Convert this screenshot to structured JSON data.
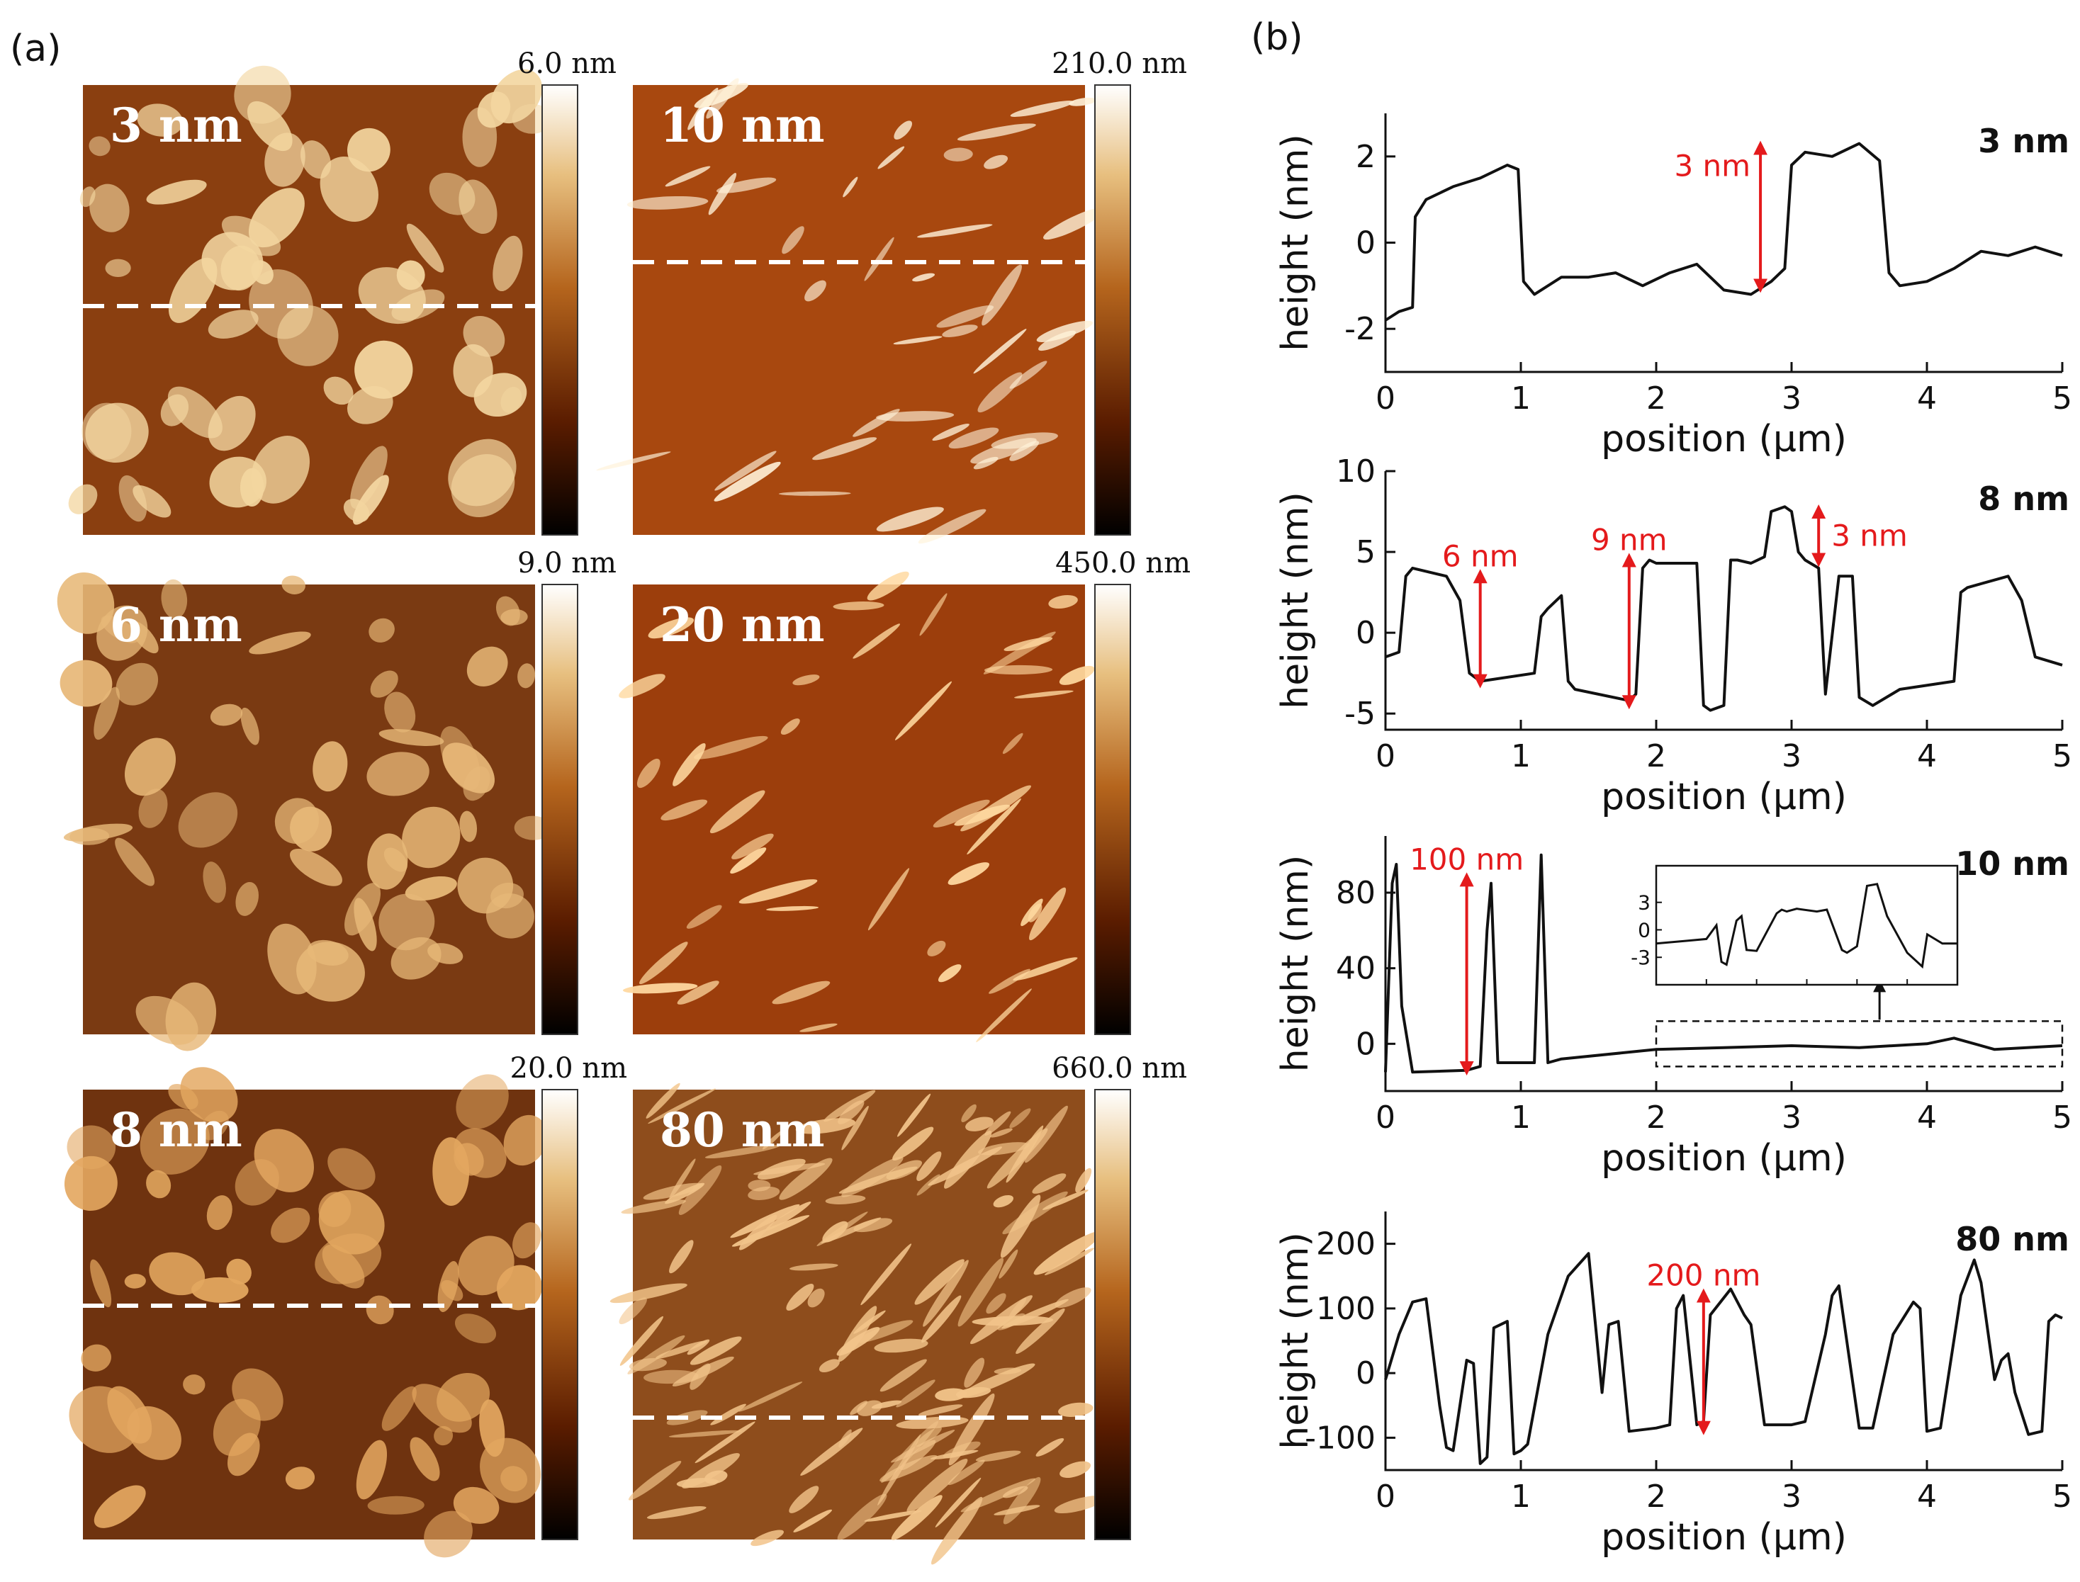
{
  "panel_a": {
    "label": "(a)",
    "images": [
      {
        "label": "3 nm",
        "colorbar_max": "6.0 nm",
        "base": "#8a3f10",
        "feature": "#f3d6a0"
      },
      {
        "label": "10 nm",
        "colorbar_max": "210.0 nm",
        "base": "#a8480f",
        "feature": "#fff2d8"
      },
      {
        "label": "6 nm",
        "colorbar_max": "9.0 nm",
        "base": "#7a3a12",
        "feature": "#e7b878"
      },
      {
        "label": "20 nm",
        "colorbar_max": "450.0 nm",
        "base": "#9c3e0c",
        "feature": "#ffd9a0"
      },
      {
        "label": "8 nm",
        "colorbar_max": "20.0 nm",
        "base": "#6f330f",
        "feature": "#e3a760"
      },
      {
        "label": "80 nm",
        "colorbar_max": "660.0 nm",
        "base": "#8e4d1c",
        "feature": "#f2c48a"
      }
    ]
  },
  "panel_b": {
    "label": "(b)"
  },
  "chart_data": [
    {
      "type": "line",
      "title": "3 nm",
      "xlabel": "position (μm)",
      "ylabel": "height (nm)",
      "xlim": [
        0,
        5
      ],
      "ylim": [
        -3,
        3
      ],
      "xticks": [
        0,
        1,
        2,
        3,
        4,
        5
      ],
      "yticks": [
        -2,
        0,
        2
      ],
      "x": [
        0,
        0.1,
        0.2,
        0.22,
        0.3,
        0.5,
        0.7,
        0.9,
        0.98,
        1.02,
        1.1,
        1.3,
        1.5,
        1.7,
        1.9,
        2.1,
        2.3,
        2.5,
        2.7,
        2.85,
        2.95,
        3.0,
        3.1,
        3.3,
        3.5,
        3.65,
        3.72,
        3.8,
        4.0,
        4.2,
        4.4,
        4.6,
        4.8,
        5.0
      ],
      "values": [
        -1.8,
        -1.6,
        -1.5,
        0.6,
        1.0,
        1.3,
        1.5,
        1.8,
        1.7,
        -0.9,
        -1.2,
        -0.8,
        -0.8,
        -0.7,
        -1.0,
        -0.7,
        -0.5,
        -1.1,
        -1.2,
        -0.9,
        -0.6,
        1.8,
        2.1,
        2.0,
        2.3,
        1.9,
        -0.7,
        -1.0,
        -0.9,
        -0.6,
        -0.2,
        -0.3,
        -0.1,
        -0.3
      ],
      "annotations": [
        {
          "text": "3 nm",
          "x": 2.77,
          "y1": 2.2,
          "y2": -1.0
        }
      ]
    },
    {
      "type": "line",
      "title": "8 nm",
      "xlabel": "position (μm)",
      "ylabel": "height (nm)",
      "xlim": [
        0,
        5
      ],
      "ylim": [
        -6,
        10
      ],
      "xticks": [
        0,
        1,
        2,
        3,
        4,
        5
      ],
      "yticks": [
        -5,
        0,
        5,
        10
      ],
      "x": [
        0,
        0.1,
        0.15,
        0.2,
        0.45,
        0.55,
        0.62,
        0.7,
        1.1,
        1.15,
        1.2,
        1.3,
        1.35,
        1.4,
        1.8,
        1.85,
        1.9,
        1.95,
        2.0,
        2.3,
        2.35,
        2.4,
        2.5,
        2.55,
        2.6,
        2.7,
        2.8,
        2.85,
        2.95,
        3.0,
        3.05,
        3.1,
        3.2,
        3.25,
        3.35,
        3.45,
        3.5,
        3.6,
        3.8,
        4.2,
        4.25,
        4.3,
        4.6,
        4.7,
        4.8,
        5.0
      ],
      "values": [
        -1.5,
        -1.2,
        3.5,
        4.0,
        3.5,
        2.0,
        -2.5,
        -3.0,
        -2.5,
        1.0,
        1.5,
        2.3,
        -3.0,
        -3.5,
        -4.2,
        -3.8,
        4.0,
        4.5,
        4.3,
        4.3,
        -4.5,
        -4.8,
        -4.5,
        4.5,
        4.5,
        4.3,
        4.7,
        7.5,
        7.8,
        7.5,
        5.0,
        4.5,
        4.0,
        -3.8,
        3.5,
        3.5,
        -4.0,
        -4.5,
        -3.5,
        -3.0,
        2.5,
        2.8,
        3.5,
        2.0,
        -1.5,
        -2.0
      ],
      "annotations": [
        {
          "text": "6 nm",
          "x": 0.7,
          "y1": 3.5,
          "y2": -3.0
        },
        {
          "text": "9 nm",
          "x": 1.8,
          "y1": 4.5,
          "y2": -4.3
        },
        {
          "text": "3 nm",
          "x": 3.2,
          "y1": 7.5,
          "y2": 4.5
        }
      ]
    },
    {
      "type": "line",
      "title": "10 nm",
      "xlabel": "position (μm)",
      "ylabel": "height (nm)",
      "xlim": [
        0,
        5
      ],
      "ylim": [
        -25,
        110
      ],
      "xticks": [
        0,
        1,
        2,
        3,
        4,
        5
      ],
      "yticks": [
        0,
        40,
        80
      ],
      "x": [
        0,
        0.05,
        0.08,
        0.12,
        0.2,
        0.6,
        0.7,
        0.75,
        0.78,
        0.83,
        0.9,
        1.1,
        1.15,
        1.2,
        1.3,
        2.0,
        2.5,
        3.0,
        3.5,
        4.0,
        4.2,
        4.5,
        5.0
      ],
      "values": [
        -15,
        85,
        95,
        20,
        -15,
        -14,
        -12,
        60,
        85,
        -10,
        -10,
        -10,
        100,
        -10,
        -8,
        -3,
        -2,
        -1,
        -2,
        0,
        3,
        -3,
        -1
      ],
      "annotations": [
        {
          "text": "100 nm",
          "x": 0.6,
          "y1": 87,
          "y2": -13
        }
      ],
      "inset": {
        "x": [
          2.0,
          2.3,
          2.5,
          2.6,
          2.65,
          2.7,
          2.8,
          2.85,
          2.9,
          3.0,
          3.2,
          3.25,
          3.3,
          3.4,
          3.6,
          3.7,
          3.85,
          3.9,
          4.0,
          4.1,
          4.2,
          4.3,
          4.5,
          4.65,
          4.7,
          4.85,
          5.0
        ],
        "values": [
          -1.5,
          -1.2,
          -1.0,
          0.5,
          -3.5,
          -3.8,
          1.0,
          1.5,
          -2.2,
          -2.3,
          1.8,
          2.2,
          2.0,
          2.3,
          2.0,
          2.2,
          -2.2,
          -2.5,
          -1.8,
          4.8,
          5.0,
          1.5,
          -2.5,
          -4.0,
          -0.5,
          -1.5,
          -1.5
        ],
        "yticks": [
          -3,
          0,
          3
        ],
        "xlim": [
          2,
          5
        ],
        "ylim": [
          -6,
          7
        ]
      }
    },
    {
      "type": "line",
      "title": "80 nm",
      "xlabel": "position (μm)",
      "ylabel": "height (nm)",
      "xlim": [
        0,
        5
      ],
      "ylim": [
        -150,
        250
      ],
      "xticks": [
        0,
        1,
        2,
        3,
        4,
        5
      ],
      "yticks": [
        -100,
        0,
        100,
        200
      ],
      "x": [
        0,
        0.1,
        0.2,
        0.3,
        0.4,
        0.45,
        0.5,
        0.6,
        0.65,
        0.7,
        0.75,
        0.8,
        0.9,
        0.95,
        1.0,
        1.05,
        1.2,
        1.35,
        1.5,
        1.6,
        1.65,
        1.72,
        1.8,
        2.0,
        2.1,
        2.15,
        2.2,
        2.3,
        2.35,
        2.4,
        2.55,
        2.65,
        2.7,
        2.8,
        3.0,
        3.1,
        3.25,
        3.3,
        3.35,
        3.5,
        3.6,
        3.75,
        3.9,
        3.95,
        4.0,
        4.1,
        4.25,
        4.35,
        4.4,
        4.5,
        4.55,
        4.6,
        4.65,
        4.75,
        4.85,
        4.9,
        4.95,
        5.0
      ],
      "values": [
        -10,
        60,
        110,
        115,
        -50,
        -115,
        -120,
        20,
        15,
        -140,
        -130,
        70,
        80,
        -125,
        -120,
        -110,
        60,
        150,
        185,
        -30,
        75,
        80,
        -90,
        -85,
        -80,
        100,
        120,
        -80,
        -75,
        90,
        130,
        90,
        75,
        -80,
        -80,
        -75,
        60,
        120,
        135,
        -85,
        -85,
        60,
        110,
        100,
        -90,
        -85,
        120,
        175,
        140,
        -10,
        20,
        30,
        -30,
        -95,
        -90,
        80,
        90,
        85
      ],
      "annotations": [
        {
          "text": "200 nm",
          "x": 2.35,
          "y1": 120,
          "y2": -85
        }
      ]
    }
  ]
}
